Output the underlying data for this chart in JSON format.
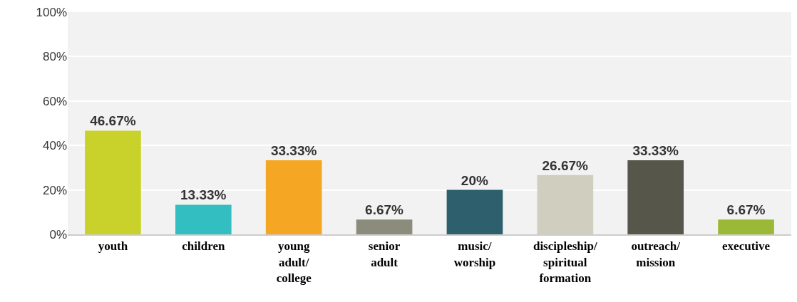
{
  "chart_data": {
    "type": "bar",
    "categories": [
      "youth",
      "children",
      "young\nadult/\ncollege",
      "senior\nadult",
      "music/\nworship",
      "discipleship/\nspiritual\nformation",
      "outreach/\nmission",
      "executive"
    ],
    "values": [
      46.67,
      13.33,
      33.33,
      6.67,
      20,
      26.67,
      33.33,
      6.67
    ],
    "value_labels": [
      "46.67%",
      "13.33%",
      "33.33%",
      "6.67%",
      "20%",
      "26.67%",
      "33.33%",
      "6.67%"
    ],
    "colors": [
      "#c9d22b",
      "#33bfc1",
      "#f5a623",
      "#8b8c7c",
      "#2e5f6d",
      "#cfcebf",
      "#57564a",
      "#9bb936"
    ],
    "ylim": [
      0,
      100
    ],
    "yticks": [
      {
        "value": 0,
        "label": "0%"
      },
      {
        "value": 20,
        "label": "20%"
      },
      {
        "value": 40,
        "label": "40%"
      },
      {
        "value": 60,
        "label": "60%"
      },
      {
        "value": 80,
        "label": "80%"
      },
      {
        "value": 100,
        "label": "100%"
      }
    ],
    "grid": "y"
  }
}
